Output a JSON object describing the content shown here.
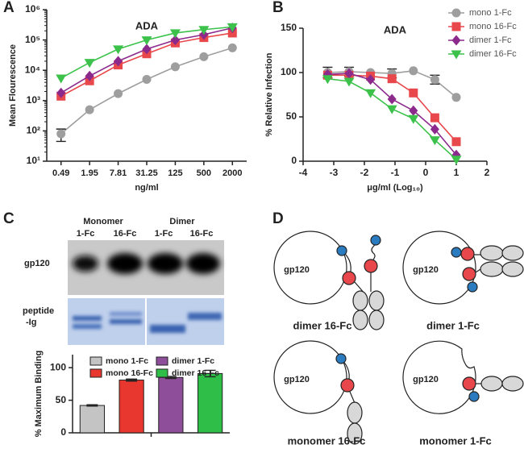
{
  "panel_labels": [
    "A",
    "B",
    "C",
    "D"
  ],
  "chart_data": [
    {
      "type": "line",
      "title": "ADA",
      "x_label": "ng/ml",
      "y_label": "Mean Flourescence",
      "categories": [
        "0.49",
        "1.95",
        "7.81",
        "31.25",
        "125",
        "500",
        "2000"
      ],
      "log_y": true,
      "ylim": [
        10,
        1000000
      ],
      "yticks": [
        {
          "value": 10,
          "label": "10¹"
        },
        {
          "value": 100,
          "label": "10²"
        },
        {
          "value": 1000,
          "label": "10³"
        },
        {
          "value": 10000,
          "label": "10⁴"
        },
        {
          "value": 100000,
          "label": "10⁵"
        },
        {
          "value": 1000000,
          "label": "10⁶"
        }
      ],
      "series": [
        {
          "color": "#9e9e9e",
          "marker": "circle",
          "values": [
            80,
            500,
            1700,
            5000,
            13000,
            28000,
            55000
          ],
          "errors": [
            35,
            null,
            null,
            null,
            null,
            null,
            null
          ]
        },
        {
          "color": "#e8474b",
          "marker": "square",
          "values": [
            1400,
            4500,
            15000,
            35000,
            80000,
            120000,
            170000
          ],
          "errors": [
            null,
            null,
            null,
            null,
            null,
            null,
            null
          ]
        },
        {
          "color": "#8b2a8c",
          "marker": "diamond",
          "values": [
            1800,
            6500,
            20000,
            50000,
            100000,
            150000,
            250000
          ],
          "errors": [
            null,
            null,
            null,
            null,
            null,
            null,
            null
          ]
        },
        {
          "color": "#3cc24a",
          "marker": "triangle",
          "values": [
            5500,
            18000,
            50000,
            100000,
            170000,
            220000,
            270000
          ],
          "errors": [
            null,
            null,
            null,
            null,
            null,
            null,
            null
          ]
        }
      ]
    },
    {
      "type": "line",
      "title": "ADA",
      "x_label": "μg/ml (Log₁₀)",
      "y_label": "% Relative Infection",
      "x": [
        -3.2,
        -2.5,
        -1.8,
        -1.1,
        -0.4,
        0.3,
        1.0
      ],
      "xlim": [
        -4,
        2
      ],
      "xticks": [
        -4,
        -3,
        -2,
        -1,
        0,
        1,
        2
      ],
      "ylim": [
        0,
        150
      ],
      "yticks": [
        0,
        50,
        100,
        150
      ],
      "legend": "upper right",
      "series": [
        {
          "name": "mono 1-Fc",
          "color": "#9e9e9e",
          "marker": "circle",
          "values": [
            100,
            101,
            100,
            99,
            102,
            92,
            72
          ],
          "errors": [
            6,
            5,
            null,
            5,
            null,
            5,
            null
          ]
        },
        {
          "name": "mono 16-Fc",
          "color": "#e8474b",
          "marker": "square",
          "values": [
            97,
            97,
            96,
            93,
            77,
            49,
            22
          ],
          "errors": [
            null,
            null,
            null,
            null,
            null,
            null,
            null
          ]
        },
        {
          "name": "dimer 1-Fc",
          "color": "#8b2a8c",
          "marker": "diamond",
          "values": [
            98,
            99,
            92,
            70,
            57,
            36,
            7
          ],
          "errors": [
            null,
            null,
            null,
            null,
            null,
            null,
            null
          ]
        },
        {
          "name": "dimer 16-Fc",
          "color": "#3cc24a",
          "marker": "triangle",
          "values": [
            93,
            90,
            77,
            59,
            48,
            24,
            2
          ],
          "errors": [
            null,
            null,
            null,
            null,
            null,
            null,
            null
          ]
        }
      ]
    },
    {
      "type": "bar",
      "y_label": "% Maximum Binding",
      "categories": [
        null
      ],
      "ylim": [
        0,
        120
      ],
      "yticks": [
        0,
        50,
        100
      ],
      "legend": "top",
      "series": [
        {
          "name": "mono 1-Fc",
          "color": "#c4c4c4",
          "values": [
            42
          ],
          "errors": [
            1
          ]
        },
        {
          "name": "mono 16-Fc",
          "color": "#e8372f",
          "values": [
            81
          ],
          "errors": [
            1.5
          ]
        },
        {
          "name": "dimer 1-Fc",
          "color": "#8e4e9a",
          "values": [
            85
          ],
          "errors": [
            1.5
          ]
        },
        {
          "name": "dimer 16-Fc",
          "color": "#2fbf49",
          "values": [
            91
          ],
          "errors": [
            5
          ]
        }
      ]
    }
  ],
  "gel": {
    "groups": [
      "Monomer",
      "Dimer"
    ],
    "lanes": [
      "1-Fc",
      "16-Fc",
      "1-Fc",
      "16-Fc"
    ],
    "row_label": "gp120",
    "peptide_label": [
      "peptide",
      "-Ig"
    ]
  },
  "diagram": {
    "labels": [
      "gp120",
      "gp120",
      "gp120",
      "gp120"
    ],
    "captions": [
      "dimer 16-Fc",
      "dimer 1-Fc",
      "monomer 16-Fc",
      "monomer 1-Fc"
    ]
  }
}
